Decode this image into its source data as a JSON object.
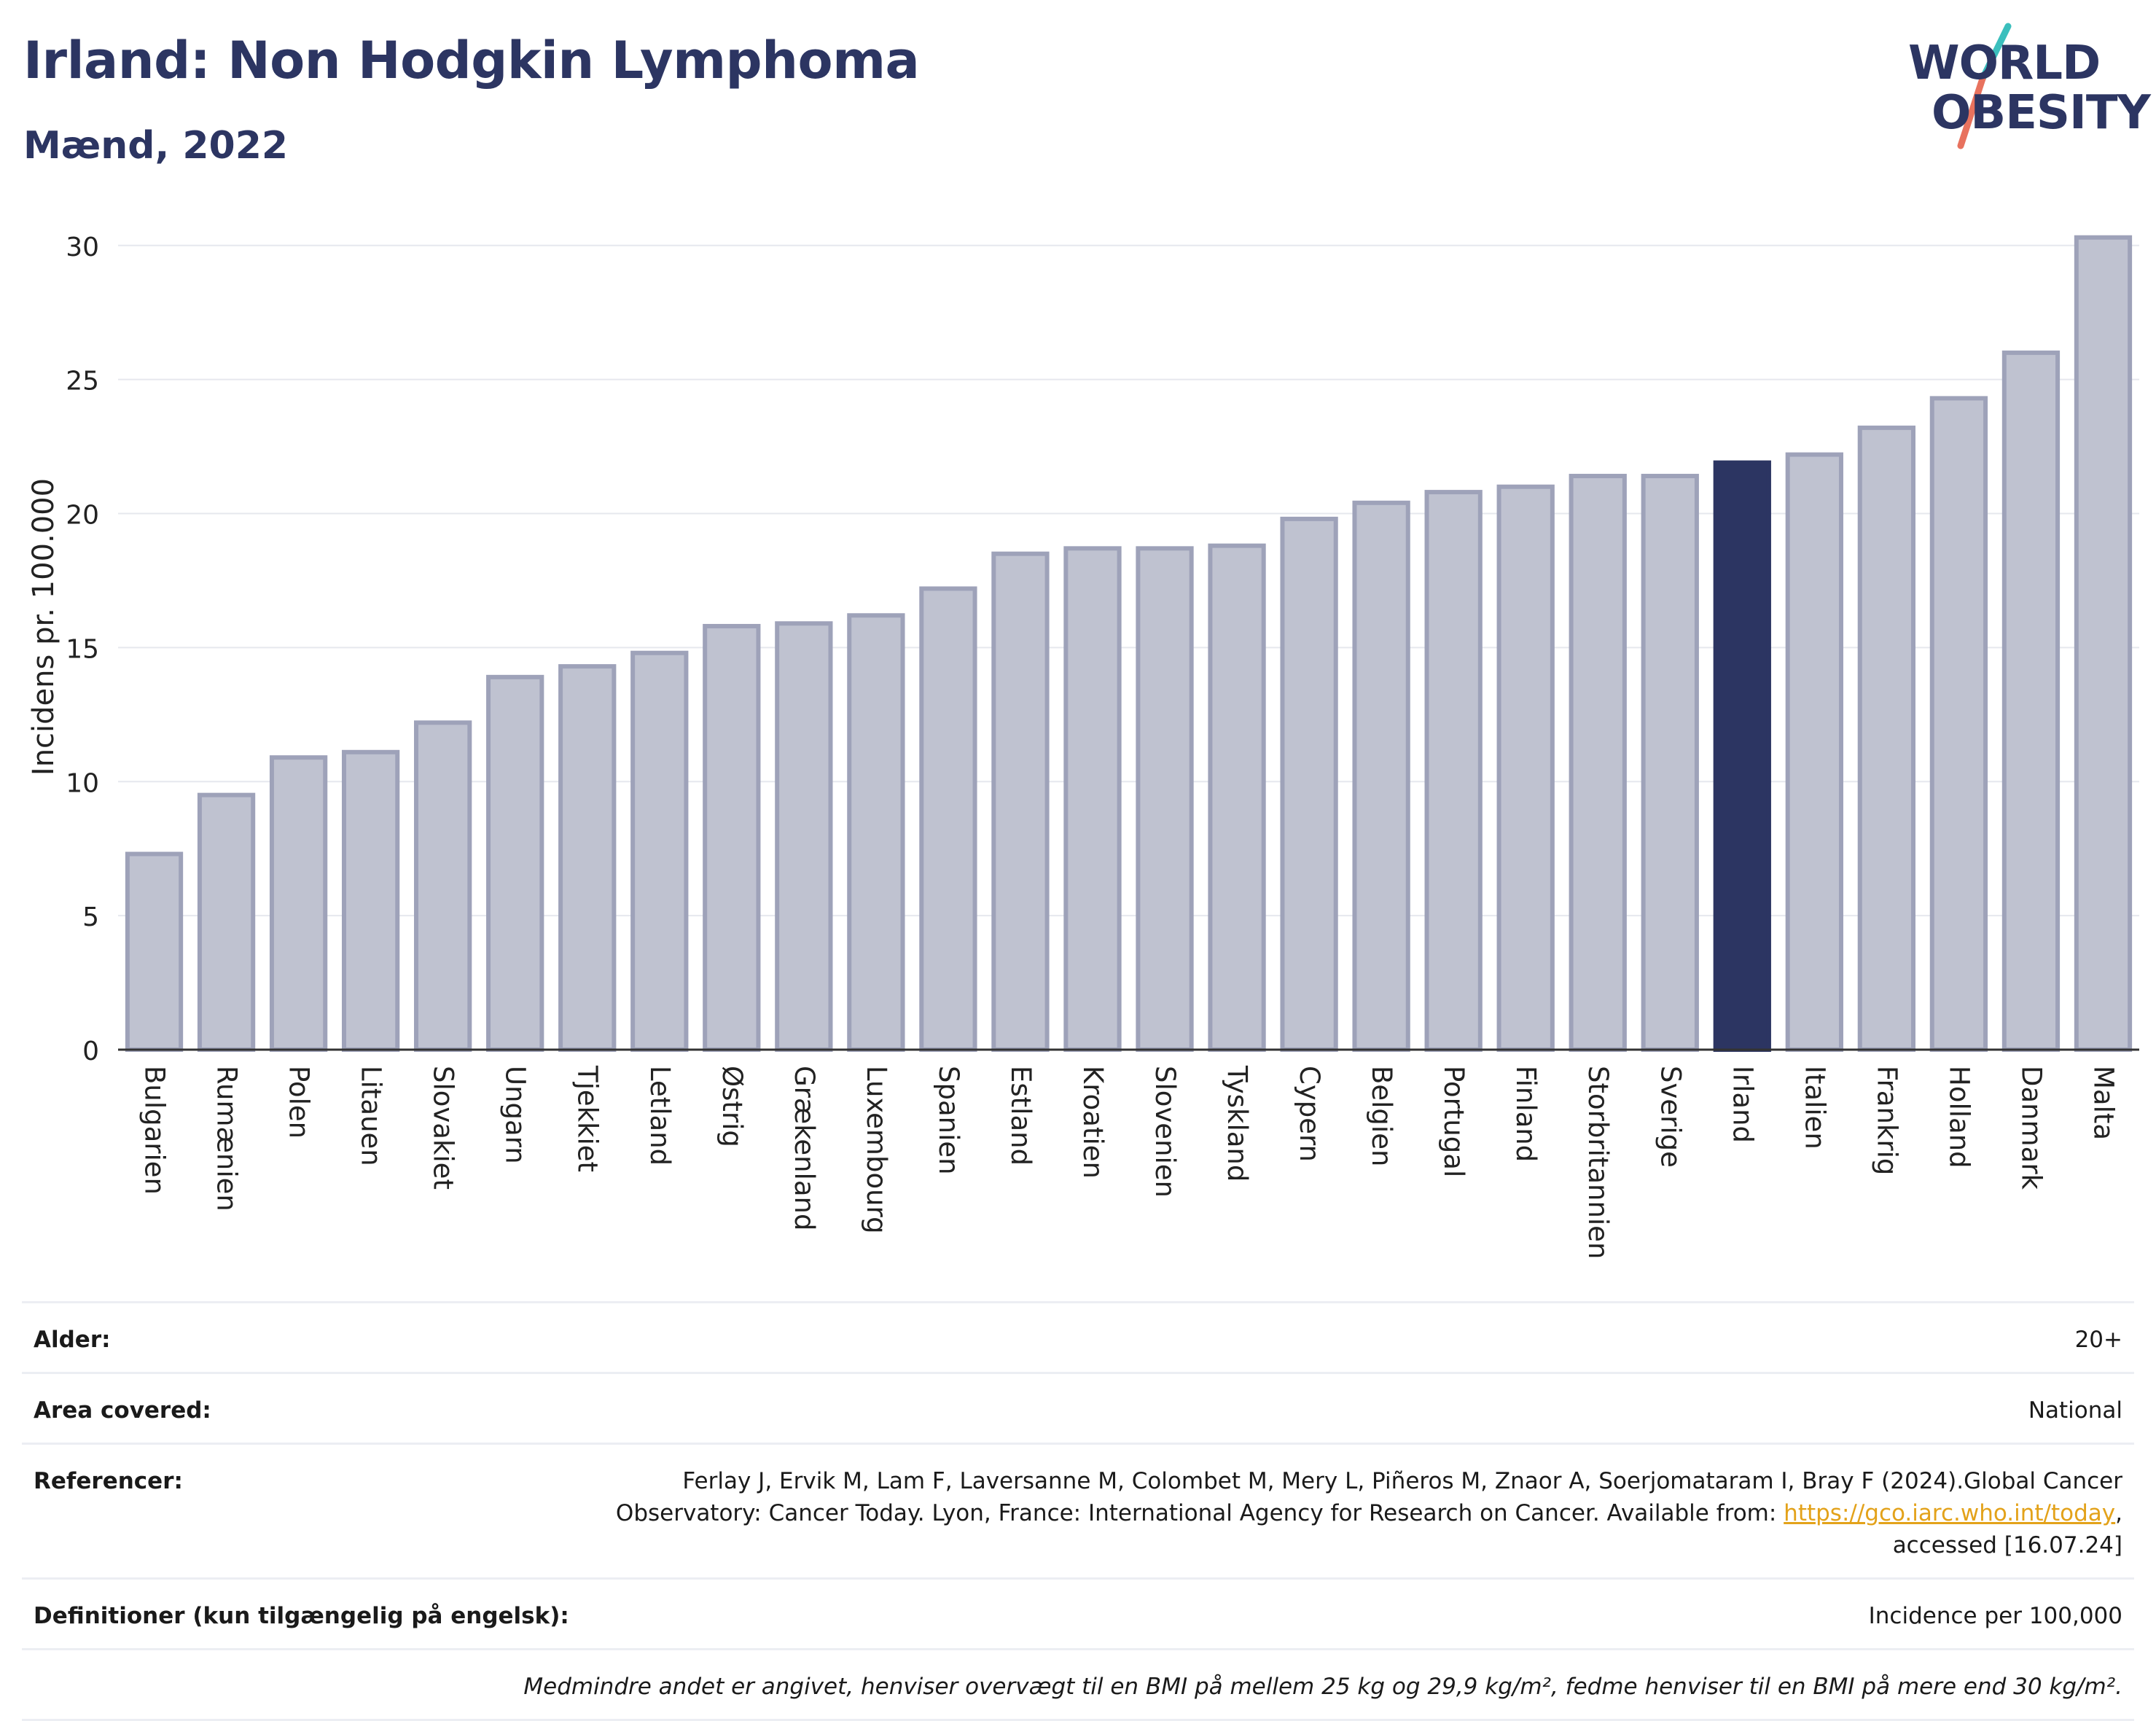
{
  "header": {
    "title": "Irland: Non Hodgkin Lymphoma",
    "subtitle": "Mænd, 2022"
  },
  "logo": {
    "line1": "WORLD",
    "line2": "OBESITY"
  },
  "colors": {
    "highlight": "#2c3562",
    "default_bar": "#bfc2d0",
    "default_bar_stroke": "#9ea2b9",
    "accent_teal": "#3bbfbd",
    "accent_coral": "#e8725e",
    "link": "#e3a21a"
  },
  "chart_data": {
    "type": "bar",
    "ylabel": "Incidens pr. 100.000",
    "ylim": [
      0,
      31
    ],
    "yticks": [
      0,
      5,
      10,
      15,
      20,
      25,
      30
    ],
    "grid": true,
    "highlight": "Irland",
    "categories": [
      "Bulgarien",
      "Rumænien",
      "Polen",
      "Litauen",
      "Slovakiet",
      "Ungarn",
      "Tjekkiet",
      "Letland",
      "Østrig",
      "Grækenland",
      "Luxembourg",
      "Spanien",
      "Estland",
      "Kroatien",
      "Slovenien",
      "Tyskland",
      "Cypern",
      "Belgien",
      "Portugal",
      "Finland",
      "Storbritannien",
      "Sverige",
      "Irland",
      "Italien",
      "Frankrig",
      "Holland",
      "Danmark",
      "Malta"
    ],
    "values": [
      7.3,
      9.5,
      10.9,
      11.1,
      12.2,
      13.9,
      14.3,
      14.8,
      15.8,
      15.9,
      16.2,
      17.2,
      18.5,
      18.7,
      18.7,
      18.8,
      19.8,
      20.4,
      20.8,
      21.0,
      21.4,
      21.4,
      21.9,
      22.2,
      23.2,
      24.3,
      26.0,
      30.3
    ]
  },
  "meta": {
    "age_label": "Alder:",
    "age_value": "20+",
    "area_label": "Area covered:",
    "area_value": "National",
    "ref_label": "Referencer:",
    "ref_line1": "Ferlay J, Ervik M, Lam F, Laversanne M, Colombet M, Mery L, Piñeros M, Znaor A, Soerjomataram I, Bray F (2024).Global Cancer",
    "ref_line2": "Observatory: Cancer Today. Lyon, France: International Agency for Research on Cancer. Available from: ",
    "ref_link": "https://gco.iarc.who.int/today",
    "ref_line2_end": ",",
    "ref_line3": "accessed [16.07.24]",
    "def_label": "Definitioner (kun tilgængelig på engelsk):",
    "def_value": "Incidence per 100,000",
    "note": "Medmindre andet er angivet, henviser overvægt til en BMI på mellem 25 kg og 29,9 kg/m², fedme henviser til en BMI på mere end 30 kg/m²."
  }
}
